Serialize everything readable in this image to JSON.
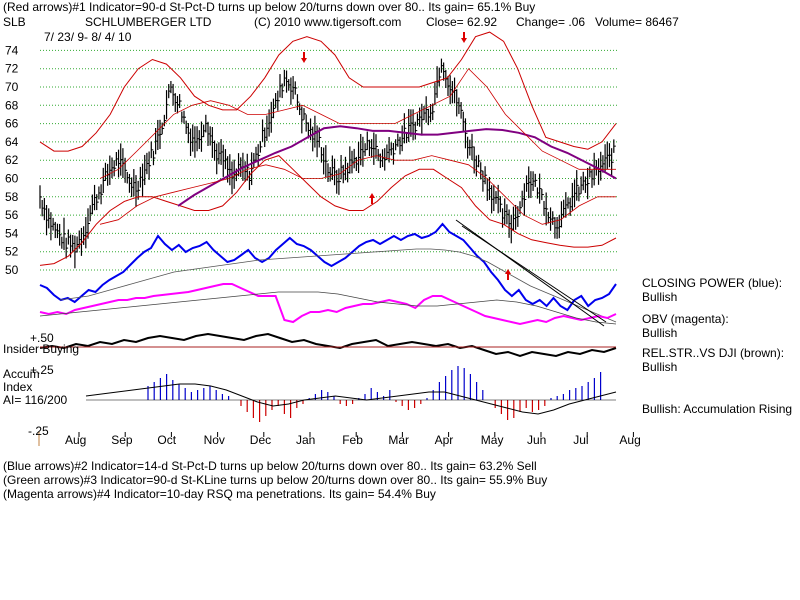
{
  "header": {
    "line1": "(Red arrows)#1 Indicator=90-d St-Pct-D turns up below 20/turns down over 80.. Its gain= 65.1% Buy",
    "ticker": "SLB",
    "company": "SCHLUMBERGER LTD",
    "copyright": "(C) 2010 www.tigersoft.com",
    "close": "Close=  62.92",
    "change": "Change= .06",
    "volume": "Volume=  86467",
    "date_range": "7/ 23/ 9- 8/ 4/ 10"
  },
  "footer": {
    "line1": "(Blue arrows)#2 Indicator=14-d St-Pct-D turns up below 20/turns down over 80.. Its gain= 63.2% Sell",
    "line2": "(Green arrows)#3 Indicator=90-d St-KLine turns up below 20/turns down over 80.. Its gain= 55.9% Buy",
    "line3": "(Magenta arrows)#4 Indicator=10-day RSQ ma penetrations. Its gain= 54.4% Buy"
  },
  "right_labels": {
    "closing_power_title": "CLOSING POWER (blue):",
    "closing_power_value": "Bullish",
    "obv_title": "OBV (magenta):",
    "obv_value": "Bullish",
    "relstr_title": "REL.STR..VS DJI (brown):",
    "relstr_value": "Bullish",
    "accum_status": "Bullish: Accumulation Rising"
  },
  "left_labels": {
    "insider": "Insider Buying",
    "plus50": "+.50",
    "plus25": "+.25",
    "minus25": "-.25",
    "accum": "Accum",
    "index": "Index",
    "ai": "AI= 116/200"
  },
  "colors": {
    "price": "#000000",
    "band": "#cc0000",
    "ma": "#800080",
    "closing_power": "#0000ee",
    "obv": "#ff00ff",
    "grid": "#33aa33",
    "accum_pos": "#0000cc",
    "accum_neg": "#cc0000",
    "arrow_red": "#dd0000"
  },
  "chart_data": {
    "type": "line",
    "title": "SCHLUMBERGER LTD",
    "y_axis": {
      "ticks": [
        50,
        52,
        54,
        56,
        58,
        60,
        62,
        64,
        66,
        68,
        70,
        72,
        74
      ],
      "ylim": [
        49,
        75
      ]
    },
    "x_axis": {
      "ticks": [
        "Aug",
        "Sep",
        "Oct",
        "Nov",
        "Dec",
        "Jan",
        "Feb",
        "Mar",
        "Apr",
        "May",
        "Jun",
        "Jul",
        "Aug"
      ]
    },
    "series": [
      {
        "name": "Price close",
        "values": [
          58,
          55.5,
          54,
          53,
          52.5,
          54,
          57,
          59,
          61,
          62,
          60,
          59,
          61,
          63,
          66,
          70,
          68,
          65,
          64,
          66.5,
          63,
          62,
          60,
          61,
          60.5,
          63,
          66,
          68,
          71,
          70,
          67,
          65,
          64,
          61,
          60,
          61,
          62,
          63,
          64,
          62,
          63,
          64,
          65,
          66,
          67,
          68,
          73,
          70,
          68,
          64,
          62,
          60,
          58,
          56,
          55,
          57,
          60,
          59,
          57,
          55,
          56,
          58,
          59,
          60,
          61,
          62,
          63
        ]
      },
      {
        "name": "Upper band",
        "values": [
          64,
          63,
          63,
          63.5,
          65,
          67,
          70,
          72,
          73,
          72.5,
          71,
          69,
          68,
          67.5,
          67.5,
          69,
          71,
          73.5,
          75,
          75.5,
          75,
          73.5,
          71,
          70,
          70,
          70,
          70,
          70,
          70.5,
          71,
          73,
          75.5,
          76,
          75,
          72,
          68,
          64.5,
          64,
          63.5,
          63.2,
          64,
          66
        ]
      },
      {
        "name": "Lower band",
        "values": [
          50.5,
          50.7,
          51.5,
          53,
          55,
          56.5,
          57.5,
          58,
          58,
          57.5,
          57,
          56.5,
          56.5,
          57,
          58.5,
          60.5,
          62,
          62.5,
          61,
          59.5,
          58,
          57,
          56.5,
          56.5,
          57.5,
          59,
          60.3,
          61,
          61,
          60,
          59,
          57,
          55.5,
          55,
          54,
          53.3,
          53,
          52.7,
          52.5,
          52.5,
          52.7,
          53.5
        ]
      },
      {
        "name": "Moving average",
        "values": [
          57,
          58.2,
          59.2,
          60.2,
          61.2,
          62,
          62.8,
          63.5,
          64.5,
          65.5,
          65.7,
          65.5,
          65.2,
          65.2,
          65,
          64.8,
          64.8,
          65,
          65.2,
          65.4,
          65.3,
          65,
          64.5,
          63.5,
          62.8,
          61.9,
          61,
          60
        ]
      },
      {
        "name": "Closing Power (blue)",
        "values": []
      },
      {
        "name": "OBV (magenta)",
        "values": []
      },
      {
        "name": "Rel.Str vs DJI (brown)",
        "values": []
      },
      {
        "name": "Accumulation Index",
        "values": []
      }
    ]
  }
}
